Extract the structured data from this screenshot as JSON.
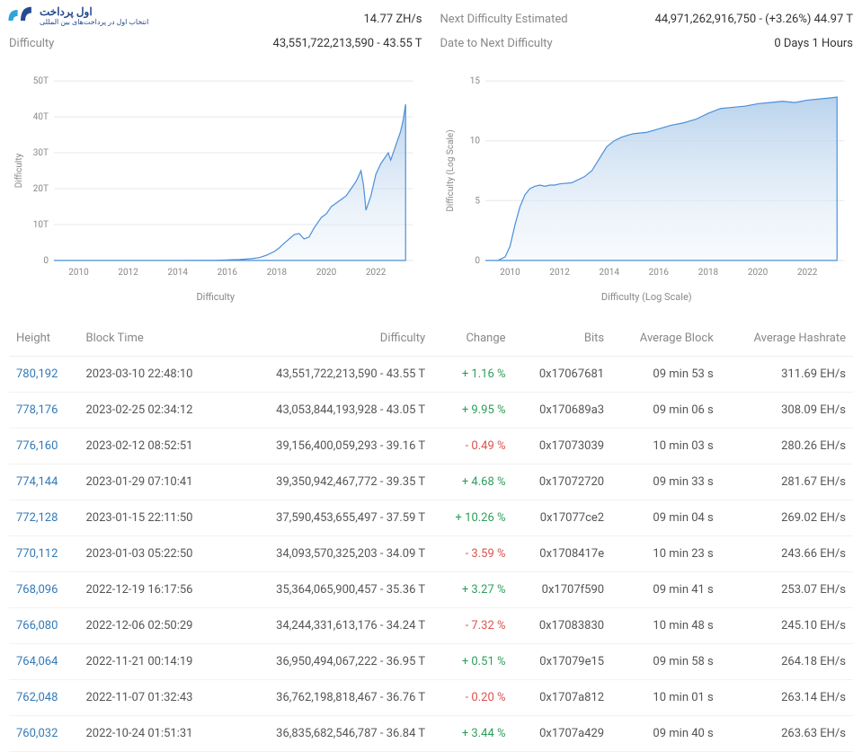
{
  "logo": {
    "text_top": "اول پرداخت",
    "text_bottom": "انتخاب اول در پرداخت‌های بین المللی"
  },
  "top_left": {
    "row1_label": "",
    "row1_value": "14.77 ZH/s",
    "row2_label": "Difficulty",
    "row2_value": "43,551,722,213,590 - 43.55 T"
  },
  "top_right": {
    "row1_label": "Next Difficulty Estimated",
    "row1_value": "44,971,262,916,750 - (+3.26%) 44.97 T",
    "row2_label": "Date to Next Difficulty",
    "row2_value": "0 Days 1 Hours"
  },
  "chart1": {
    "type": "area",
    "caption": "Difficulty",
    "ylabel": "Difficulty",
    "ylim": [
      0,
      50
    ],
    "yticks": [
      "0",
      "10T",
      "20T",
      "30T",
      "40T",
      "50T"
    ],
    "xticks": [
      "2010",
      "2012",
      "2014",
      "2016",
      "2018",
      "2020",
      "2022"
    ],
    "xrange": [
      2009,
      2023.5
    ],
    "stroke_color": "#4a90d9",
    "fill_top": "#a8c8e8",
    "fill_bottom": "#e8f0fa",
    "grid_color": "#e8e8e8",
    "background_color": "#ffffff",
    "data": [
      [
        2009,
        0
      ],
      [
        2010,
        0
      ],
      [
        2011,
        0
      ],
      [
        2012,
        0
      ],
      [
        2013,
        0
      ],
      [
        2014,
        0.02
      ],
      [
        2015,
        0.05
      ],
      [
        2015.5,
        0.06
      ],
      [
        2016,
        0.15
      ],
      [
        2016.5,
        0.25
      ],
      [
        2017,
        0.5
      ],
      [
        2017.3,
        0.8
      ],
      [
        2017.6,
        1.5
      ],
      [
        2017.9,
        2.5
      ],
      [
        2018.1,
        3.5
      ],
      [
        2018.3,
        4.8
      ],
      [
        2018.5,
        6
      ],
      [
        2018.7,
        7.2
      ],
      [
        2018.9,
        7.5
      ],
      [
        2019.1,
        6
      ],
      [
        2019.3,
        6.5
      ],
      [
        2019.5,
        9
      ],
      [
        2019.8,
        12
      ],
      [
        2020,
        13
      ],
      [
        2020.2,
        15
      ],
      [
        2020.4,
        16
      ],
      [
        2020.6,
        17
      ],
      [
        2020.8,
        18
      ],
      [
        2021,
        20
      ],
      [
        2021.2,
        22
      ],
      [
        2021.4,
        25
      ],
      [
        2021.5,
        21
      ],
      [
        2021.6,
        14
      ],
      [
        2021.8,
        18
      ],
      [
        2022,
        24
      ],
      [
        2022.2,
        27
      ],
      [
        2022.4,
        29
      ],
      [
        2022.5,
        30
      ],
      [
        2022.6,
        28
      ],
      [
        2022.8,
        32
      ],
      [
        2023,
        36
      ],
      [
        2023.1,
        39
      ],
      [
        2023.2,
        43.5
      ]
    ]
  },
  "chart2": {
    "type": "area",
    "caption": "Difficulty (Log Scale)",
    "ylabel": "Difficulty (Log Scale)",
    "ylim": [
      0,
      15
    ],
    "yticks": [
      "0",
      "5",
      "10",
      "15"
    ],
    "xticks": [
      "2010",
      "2012",
      "2014",
      "2016",
      "2018",
      "2020",
      "2022"
    ],
    "xrange": [
      2009,
      2023.5
    ],
    "stroke_color": "#4a90d9",
    "fill_top": "#a8c8e8",
    "fill_bottom": "#e8f0fa",
    "grid_color": "#e8e8e8",
    "background_color": "#ffffff",
    "data": [
      [
        2009,
        0
      ],
      [
        2009.5,
        0
      ],
      [
        2009.8,
        0.3
      ],
      [
        2010,
        1.2
      ],
      [
        2010.2,
        3
      ],
      [
        2010.4,
        4.5
      ],
      [
        2010.6,
        5.5
      ],
      [
        2010.8,
        6
      ],
      [
        2011,
        6.2
      ],
      [
        2011.2,
        6.3
      ],
      [
        2011.4,
        6.2
      ],
      [
        2011.6,
        6.3
      ],
      [
        2011.8,
        6.3
      ],
      [
        2012,
        6.4
      ],
      [
        2012.5,
        6.5
      ],
      [
        2013,
        7
      ],
      [
        2013.3,
        7.5
      ],
      [
        2013.6,
        8.5
      ],
      [
        2013.9,
        9.5
      ],
      [
        2014.2,
        10
      ],
      [
        2014.5,
        10.3
      ],
      [
        2014.8,
        10.5
      ],
      [
        2015,
        10.6
      ],
      [
        2015.5,
        10.7
      ],
      [
        2016,
        11
      ],
      [
        2016.5,
        11.3
      ],
      [
        2017,
        11.5
      ],
      [
        2017.5,
        11.8
      ],
      [
        2018,
        12.3
      ],
      [
        2018.5,
        12.7
      ],
      [
        2019,
        12.8
      ],
      [
        2019.5,
        12.9
      ],
      [
        2020,
        13.1
      ],
      [
        2020.5,
        13.2
      ],
      [
        2021,
        13.3
      ],
      [
        2021.5,
        13.2
      ],
      [
        2022,
        13.4
      ],
      [
        2022.5,
        13.5
      ],
      [
        2023,
        13.6
      ],
      [
        2023.2,
        13.65
      ]
    ]
  },
  "table": {
    "columns": [
      "Height",
      "Block Time",
      "Difficulty",
      "Change",
      "Bits",
      "Average Block",
      "Average Hashrate"
    ],
    "rows": [
      {
        "height": "780,192",
        "time": "2023-03-10 22:48:10",
        "diff": "43,551,722,213,590 - 43.55 T",
        "change": "+ 1.16 %",
        "change_sign": "pos",
        "bits": "0x17067681",
        "avg_block": "09 min 53 s",
        "hashrate": "311.69 EH/s"
      },
      {
        "height": "778,176",
        "time": "2023-02-25 02:34:12",
        "diff": "43,053,844,193,928 - 43.05 T",
        "change": "+ 9.95 %",
        "change_sign": "pos",
        "bits": "0x170689a3",
        "avg_block": "09 min 06 s",
        "hashrate": "308.09 EH/s"
      },
      {
        "height": "776,160",
        "time": "2023-02-12 08:52:51",
        "diff": "39,156,400,059,293 - 39.16 T",
        "change": "- 0.49 %",
        "change_sign": "neg",
        "bits": "0x17073039",
        "avg_block": "10 min 03 s",
        "hashrate": "280.26 EH/s"
      },
      {
        "height": "774,144",
        "time": "2023-01-29 07:10:41",
        "diff": "39,350,942,467,772 - 39.35 T",
        "change": "+ 4.68 %",
        "change_sign": "pos",
        "bits": "0x17072720",
        "avg_block": "09 min 33 s",
        "hashrate": "281.67 EH/s"
      },
      {
        "height": "772,128",
        "time": "2023-01-15 22:11:50",
        "diff": "37,590,453,655,497 - 37.59 T",
        "change": "+ 10.26 %",
        "change_sign": "pos",
        "bits": "0x17077ce2",
        "avg_block": "09 min 04 s",
        "hashrate": "269.02 EH/s"
      },
      {
        "height": "770,112",
        "time": "2023-01-03 05:22:50",
        "diff": "34,093,570,325,203 - 34.09 T",
        "change": "- 3.59 %",
        "change_sign": "neg",
        "bits": "0x1708417e",
        "avg_block": "10 min 23 s",
        "hashrate": "243.66 EH/s"
      },
      {
        "height": "768,096",
        "time": "2022-12-19 16:17:56",
        "diff": "35,364,065,900,457 - 35.36 T",
        "change": "+ 3.27 %",
        "change_sign": "pos",
        "bits": "0x1707f590",
        "avg_block": "09 min 41 s",
        "hashrate": "253.07 EH/s"
      },
      {
        "height": "766,080",
        "time": "2022-12-06 02:50:29",
        "diff": "34,244,331,613,176 - 34.24 T",
        "change": "- 7.32 %",
        "change_sign": "neg",
        "bits": "0x17083830",
        "avg_block": "10 min 48 s",
        "hashrate": "245.10 EH/s"
      },
      {
        "height": "764,064",
        "time": "2022-11-21 00:14:19",
        "diff": "36,950,494,067,222 - 36.95 T",
        "change": "+ 0.51 %",
        "change_sign": "pos",
        "bits": "0x17079e15",
        "avg_block": "09 min 58 s",
        "hashrate": "264.18 EH/s"
      },
      {
        "height": "762,048",
        "time": "2022-11-07 01:32:43",
        "diff": "36,762,198,818,467 - 36.76 T",
        "change": "- 0.20 %",
        "change_sign": "neg",
        "bits": "0x1707a812",
        "avg_block": "10 min 01 s",
        "hashrate": "263.14 EH/s"
      },
      {
        "height": "760,032",
        "time": "2022-10-24 01:51:31",
        "diff": "36,835,682,546,787 - 36.84 T",
        "change": "+ 3.44 %",
        "change_sign": "pos",
        "bits": "0x1707a429",
        "avg_block": "09 min 40 s",
        "hashrate": "263.63 EH/s"
      }
    ]
  }
}
